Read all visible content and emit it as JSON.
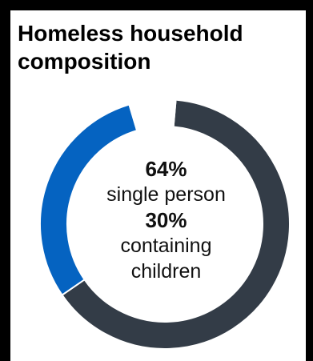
{
  "title": "Homeless household composition",
  "center": {
    "stat1_value": "64%",
    "stat1_label": "single person",
    "stat2_value": "30%",
    "stat2_label_line1": "containing",
    "stat2_label_line2": "children"
  },
  "colors": {
    "single_person": "#333c47",
    "containing_children": "#0563c1",
    "other": "#ffffff"
  },
  "chart_data": {
    "type": "pie",
    "donut": true,
    "slices": [
      {
        "label": "single person",
        "value": 64
      },
      {
        "label": "containing children",
        "value": 30
      },
      {
        "label": "",
        "value": 6
      }
    ]
  }
}
